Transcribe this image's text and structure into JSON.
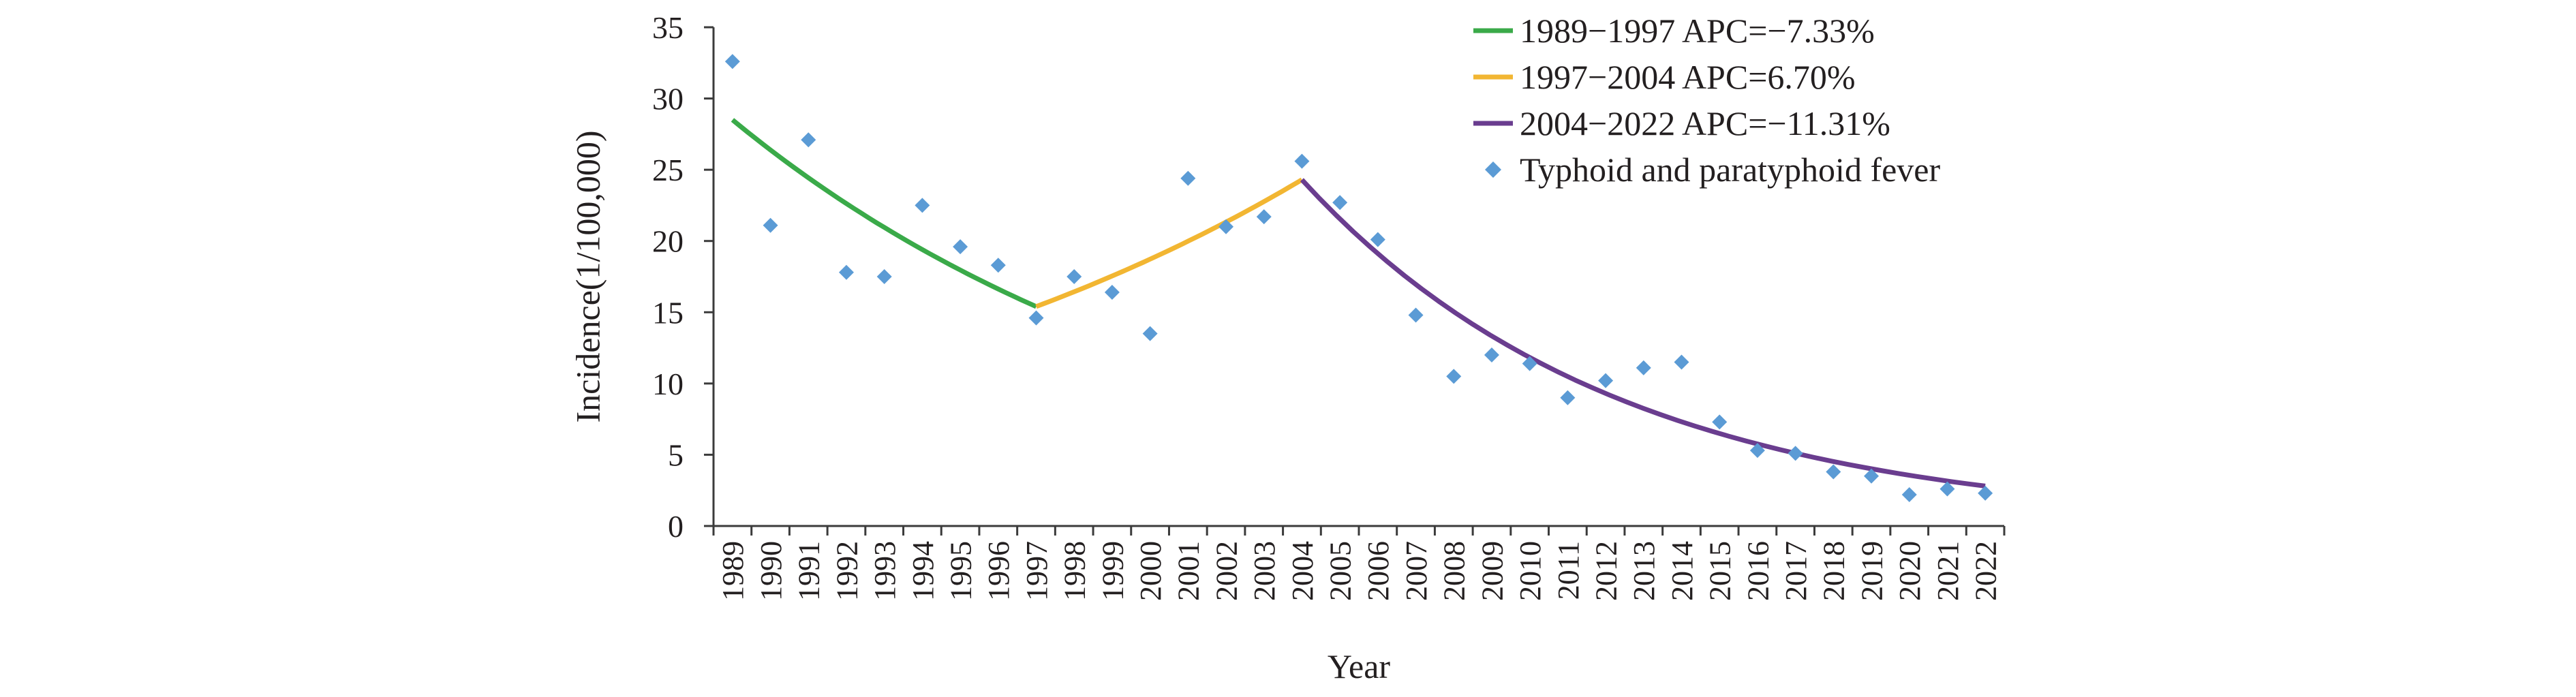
{
  "chart_data": {
    "type": "line",
    "title": "",
    "xlabel": "Year",
    "ylabel": "Incidence(1/100,000)",
    "ylim": [
      0,
      35
    ],
    "yticks": [
      "0",
      "5",
      "10",
      "15",
      "20",
      "25",
      "30",
      "35"
    ],
    "categories": [
      "1989",
      "1990",
      "1991",
      "1992",
      "1993",
      "1994",
      "1995",
      "1996",
      "1997",
      "1998",
      "1999",
      "2000",
      "2001",
      "2002",
      "2003",
      "2004",
      "2005",
      "2006",
      "2007",
      "2008",
      "2009",
      "2010",
      "2011",
      "2012",
      "2013",
      "2014",
      "2015",
      "2016",
      "2017",
      "2018",
      "2019",
      "2020",
      "2021",
      "2022"
    ],
    "grid": false,
    "legend_position": "top-right",
    "scatter": {
      "name": "Typhoid and paratyphoid fever",
      "color": "#5b9bd5",
      "values": [
        32.6,
        21.1,
        27.1,
        17.8,
        17.5,
        22.5,
        19.6,
        18.3,
        14.6,
        17.5,
        16.4,
        13.5,
        24.4,
        21.0,
        21.7,
        25.6,
        22.7,
        20.1,
        14.8,
        10.5,
        12.0,
        11.4,
        9.0,
        10.2,
        11.1,
        11.5,
        7.3,
        5.3,
        5.1,
        3.8,
        3.5,
        2.2,
        2.6,
        2.3
      ]
    },
    "series": [
      {
        "name": "1989−1997 APC=−7.33%",
        "color": "#3aaa49",
        "start": "1989",
        "end": "1997",
        "y_start": 28.5,
        "y_end": 15.4
      },
      {
        "name": "1997−2004 APC=6.70%",
        "color": "#f2b632",
        "start": "1997",
        "end": "2004",
        "y_start": 15.4,
        "y_end": 24.3
      },
      {
        "name": "2004−2022 APC=−11.31%",
        "color": "#6a3d8f",
        "start": "2004",
        "end": "2022",
        "y_start": 24.3,
        "y_end": 2.8
      }
    ]
  }
}
